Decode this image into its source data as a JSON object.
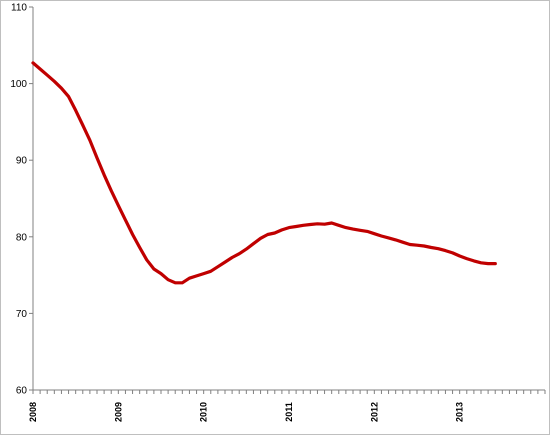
{
  "chart_data": {
    "type": "line",
    "title": "",
    "xlabel": "",
    "ylabel": "",
    "ylim": [
      60,
      110
    ],
    "yticks": [
      60,
      70,
      80,
      90,
      100,
      110
    ],
    "xlim": [
      2008,
      2014
    ],
    "xticks": [
      "2008",
      "2009",
      "2010",
      "2011",
      "2012",
      "2013"
    ],
    "grid": false,
    "legend": "none",
    "line_color": "#C00000",
    "axis_color": "#808080",
    "series": [
      {
        "x": [
          2008.0,
          2008.083,
          2008.167,
          2008.25,
          2008.333,
          2008.417,
          2008.5,
          2008.583,
          2008.667,
          2008.75,
          2008.833,
          2008.917,
          2009.0,
          2009.083,
          2009.167,
          2009.25,
          2009.333,
          2009.417,
          2009.5,
          2009.583,
          2009.667,
          2009.75,
          2009.833,
          2009.917,
          2010.0,
          2010.083,
          2010.167,
          2010.25,
          2010.333,
          2010.417,
          2010.5,
          2010.583,
          2010.667,
          2010.75,
          2010.833,
          2010.917,
          2011.0,
          2011.083,
          2011.167,
          2011.25,
          2011.333,
          2011.417,
          2011.5,
          2011.583,
          2011.667,
          2011.75,
          2011.833,
          2011.917,
          2012.0,
          2012.083,
          2012.167,
          2012.25,
          2012.333,
          2012.417,
          2012.5,
          2012.583,
          2012.667,
          2012.75,
          2012.833,
          2012.917,
          2013.0,
          2013.083,
          2013.167,
          2013.25,
          2013.333,
          2013.417
        ],
        "values": [
          102.7,
          101.9,
          101.1,
          100.3,
          99.4,
          98.3,
          96.5,
          94.6,
          92.6,
          90.3,
          88.1,
          86.0,
          84.1,
          82.2,
          80.3,
          78.6,
          77.0,
          75.8,
          75.2,
          74.4,
          74.0,
          74.0,
          74.6,
          74.9,
          75.2,
          75.5,
          76.1,
          76.7,
          77.3,
          77.8,
          78.4,
          79.1,
          79.8,
          80.3,
          80.5,
          80.9,
          81.2,
          81.35,
          81.5,
          81.6,
          81.7,
          81.65,
          81.8,
          81.5,
          81.2,
          81.0,
          80.85,
          80.7,
          80.4,
          80.1,
          79.85,
          79.6,
          79.3,
          79.0,
          78.9,
          78.8,
          78.6,
          78.45,
          78.2,
          77.9,
          77.5,
          77.15,
          76.85,
          76.6,
          76.5,
          76.5
        ]
      }
    ]
  }
}
